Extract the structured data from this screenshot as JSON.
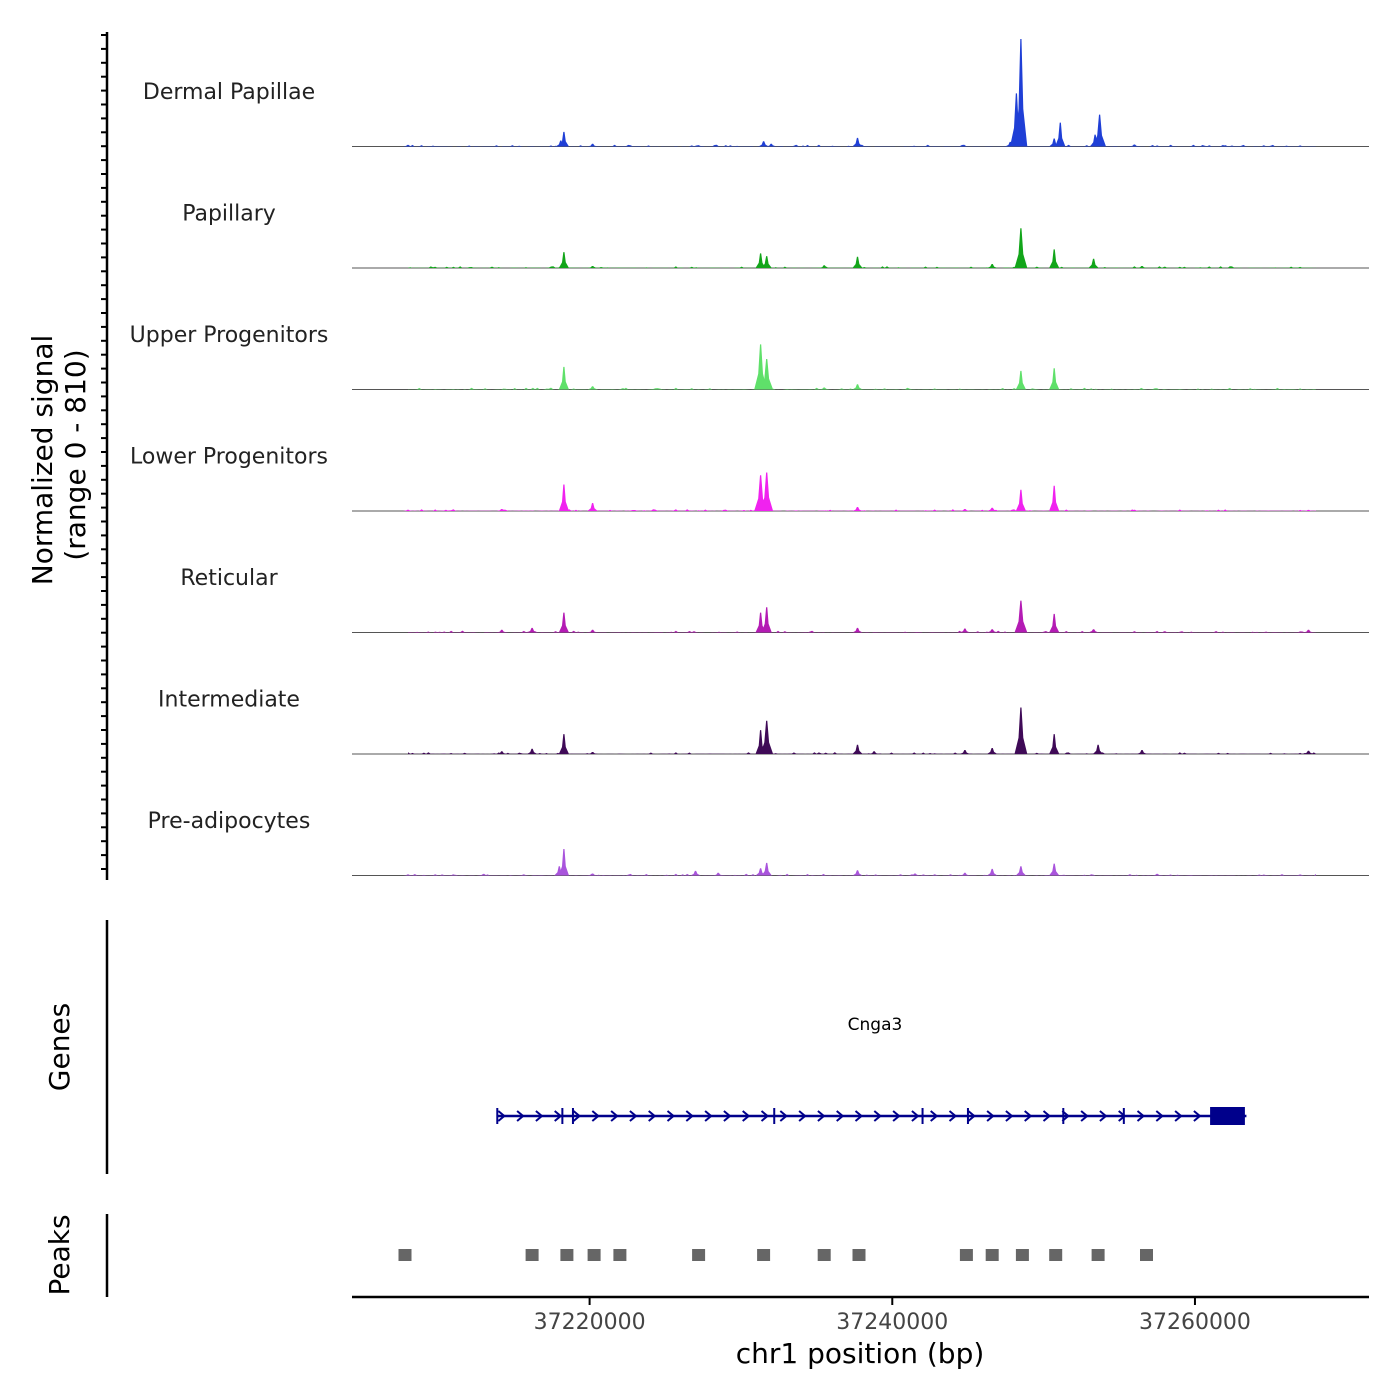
{
  "chart_data": {
    "type": "area",
    "title": "",
    "ylabel_line1": "Normalized signal",
    "ylabel_line2": "(range 0 - 810)",
    "ylim": [
      0,
      810
    ],
    "xlabel": "chr1 position (bp)",
    "xlim": [
      37204300,
      37271500
    ],
    "x_ticks": [
      37220000,
      37240000,
      37260000
    ],
    "x_tick_labels": [
      "37220000",
      "37240000",
      "37260000"
    ],
    "tracks": [
      {
        "name": "Dermal Papillae",
        "color": "#1f3fd6",
        "peaks": [
          [
            37208000,
            12
          ],
          [
            37218300,
            110
          ],
          [
            37218100,
            45
          ],
          [
            37220200,
            20
          ],
          [
            37231500,
            40
          ],
          [
            37232000,
            20
          ],
          [
            37237700,
            65
          ],
          [
            37247800,
            35
          ],
          [
            37248500,
            810
          ],
          [
            37248200,
            400
          ],
          [
            37251100,
            180
          ],
          [
            37250700,
            60
          ],
          [
            37253700,
            240
          ],
          [
            37253400,
            90
          ],
          [
            37256000,
            15
          ],
          [
            37262000,
            10
          ]
        ]
      },
      {
        "name": "Papillary",
        "color": "#12a51a",
        "peaks": [
          [
            37218300,
            120
          ],
          [
            37220200,
            15
          ],
          [
            37231300,
            110
          ],
          [
            37231700,
            90
          ],
          [
            37235500,
            20
          ],
          [
            37237700,
            85
          ],
          [
            37246600,
            30
          ],
          [
            37248500,
            300
          ],
          [
            37250700,
            140
          ],
          [
            37253300,
            70
          ],
          [
            37256500,
            15
          ],
          [
            37258000,
            10
          ]
        ]
      },
      {
        "name": "Upper Progenitors",
        "color": "#5fe06a",
        "peaks": [
          [
            37218300,
            170
          ],
          [
            37220200,
            25
          ],
          [
            37222200,
            10
          ],
          [
            37231300,
            340
          ],
          [
            37231700,
            230
          ],
          [
            37235500,
            15
          ],
          [
            37237700,
            40
          ],
          [
            37248500,
            140
          ],
          [
            37250700,
            160
          ]
        ]
      },
      {
        "name": "Lower Progenitors",
        "color": "#f022ef",
        "peaks": [
          [
            37208000,
            10
          ],
          [
            37210500,
            8
          ],
          [
            37214200,
            15
          ],
          [
            37218300,
            200
          ],
          [
            37220200,
            60
          ],
          [
            37231300,
            270
          ],
          [
            37231700,
            290
          ],
          [
            37237700,
            30
          ],
          [
            37244800,
            15
          ],
          [
            37246600,
            25
          ],
          [
            37248500,
            160
          ],
          [
            37250700,
            190
          ],
          [
            37256000,
            10
          ],
          [
            37267500,
            8
          ]
        ]
      },
      {
        "name": "Reticular",
        "color": "#b41bb4",
        "peaks": [
          [
            37214200,
            20
          ],
          [
            37216200,
            35
          ],
          [
            37218300,
            150
          ],
          [
            37220200,
            20
          ],
          [
            37231300,
            150
          ],
          [
            37231700,
            190
          ],
          [
            37237700,
            35
          ],
          [
            37244800,
            30
          ],
          [
            37246600,
            25
          ],
          [
            37248500,
            240
          ],
          [
            37250700,
            140
          ],
          [
            37253300,
            25
          ],
          [
            37258000,
            10
          ],
          [
            37267500,
            20
          ]
        ]
      },
      {
        "name": "Intermediate",
        "color": "#3f0a57",
        "peaks": [
          [
            37214200,
            20
          ],
          [
            37216200,
            40
          ],
          [
            37218300,
            150
          ],
          [
            37220200,
            15
          ],
          [
            37231300,
            180
          ],
          [
            37231700,
            250
          ],
          [
            37237700,
            70
          ],
          [
            37238800,
            20
          ],
          [
            37244800,
            30
          ],
          [
            37246600,
            45
          ],
          [
            37248500,
            350
          ],
          [
            37250700,
            150
          ],
          [
            37253600,
            70
          ],
          [
            37256500,
            30
          ],
          [
            37267500,
            25
          ]
        ]
      },
      {
        "name": "Pre-adipocytes",
        "color": "#a954dc",
        "peaks": [
          [
            37208000,
            8
          ],
          [
            37211000,
            8
          ],
          [
            37213000,
            12
          ],
          [
            37218300,
            200
          ],
          [
            37218000,
            70
          ],
          [
            37220200,
            15
          ],
          [
            37227000,
            35
          ],
          [
            37228500,
            20
          ],
          [
            37231300,
            55
          ],
          [
            37231700,
            95
          ],
          [
            37237700,
            40
          ],
          [
            37241500,
            15
          ],
          [
            37244800,
            20
          ],
          [
            37246600,
            50
          ],
          [
            37248500,
            70
          ],
          [
            37250700,
            90
          ],
          [
            37257500,
            12
          ]
        ]
      }
    ],
    "genes_label": "Genes",
    "gene": {
      "name": "Cnga3",
      "start": 37213900,
      "end": 37263400,
      "strand": "+",
      "exon_ticks": [
        37218200,
        37218900,
        37232200,
        37242000,
        37245000,
        37251300,
        37255300
      ],
      "coding_block": [
        37261000,
        37263300
      ],
      "color": "#00008b"
    },
    "peaks_label": "Peaks",
    "peaks": [
      37207800,
      37216200,
      37218500,
      37220300,
      37222000,
      37227200,
      37231500,
      37235500,
      37237800,
      37244900,
      37246600,
      37248600,
      37250800,
      37253600,
      37256800
    ],
    "peak_color": "#666666"
  }
}
